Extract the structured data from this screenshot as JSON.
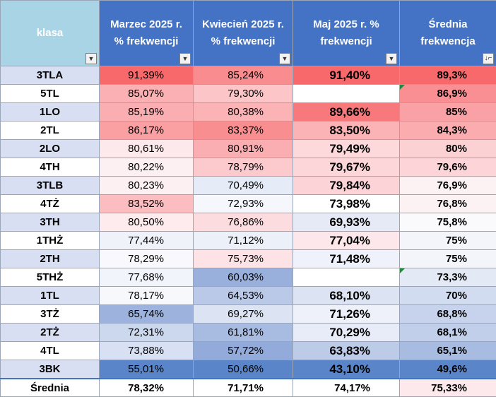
{
  "headers": {
    "klasa": "klasa",
    "marzec": [
      "Marzec 2025 r.",
      "% frekwencji"
    ],
    "kwiecien": [
      "Kwiecień 2025 r.",
      "% frekwencji"
    ],
    "maj": [
      "Maj 2025 r. %",
      "frekwencji"
    ],
    "srednia": [
      "Średnia",
      "frekwencja"
    ],
    "filter_icon": "dropdown-arrow-icon",
    "sort_icon": "sort-descending-filter-icon"
  },
  "rows": [
    {
      "klasa": "3TLA",
      "marzec": "91,39%",
      "kwiecien": "85,24%",
      "maj": "91,40%",
      "srednia": "89,3%",
      "colors": [
        "#d9dff2",
        "#f8696b",
        "#f98c8f",
        "#f8696b",
        "#f8696b"
      ]
    },
    {
      "klasa": "5TL",
      "marzec": "85,07%",
      "kwiecien": "79,30%",
      "maj": "",
      "srednia": "86,9%",
      "maj_note": true,
      "colors": [
        "#ffffff",
        "#fbb0b3",
        "#fcc6c9",
        "#ffffff",
        "#f98f92"
      ]
    },
    {
      "klasa": "1LO",
      "marzec": "85,19%",
      "kwiecien": "80,38%",
      "maj": "89,66%",
      "srednia": "85%",
      "colors": [
        "#d9dff2",
        "#fbaeb1",
        "#fbb3b6",
        "#f8797c",
        "#f9a1a4"
      ]
    },
    {
      "klasa": "2TL",
      "marzec": "86,17%",
      "kwiecien": "83,37%",
      "maj": "83,50%",
      "srednia": "84,3%",
      "colors": [
        "#ffffff",
        "#fa9fa2",
        "#f98e91",
        "#fbb3b6",
        "#fbacaf"
      ]
    },
    {
      "klasa": "2LO",
      "marzec": "80,61%",
      "kwiecien": "80,91%",
      "maj": "79,49%",
      "srednia": "80%",
      "colors": [
        "#d9dff2",
        "#fde9ec",
        "#fbaeb1",
        "#fdd9dc",
        "#fcd1d4"
      ]
    },
    {
      "klasa": "4TH",
      "marzec": "80,22%",
      "kwiecien": "78,79%",
      "maj": "79,67%",
      "srednia": "79,6%",
      "colors": [
        "#ffffff",
        "#fdf0f2",
        "#fccacd",
        "#fcd6d9",
        "#fdd5d8"
      ]
    },
    {
      "klasa": "3TLB",
      "marzec": "80,23%",
      "kwiecien": "70,49%",
      "maj": "79,84%",
      "srednia": "76,9%",
      "colors": [
        "#d9dff2",
        "#fdf0f2",
        "#e6ecf7",
        "#fcd3d6",
        "#fcf2f4"
      ]
    },
    {
      "klasa": "4TŻ",
      "marzec": "83,52%",
      "kwiecien": "72,93%",
      "maj": "73,98%",
      "srednia": "76,8%",
      "colors": [
        "#ffffff",
        "#fbbdc0",
        "#f6f7fc",
        "#ffffff",
        "#fcf2f4"
      ]
    },
    {
      "klasa": "3TH",
      "marzec": "80,50%",
      "kwiecien": "76,86%",
      "maj": "69,93%",
      "srednia": "75,8%",
      "colors": [
        "#d9dff2",
        "#fdebee",
        "#fcdcdf",
        "#e6eaf6",
        "#fafafd"
      ]
    },
    {
      "klasa": "1THŻ",
      "marzec": "77,44%",
      "kwiecien": "71,12%",
      "maj": "77,04%",
      "srednia": "75%",
      "colors": [
        "#ffffff",
        "#f0f2fa",
        "#ecf0f9",
        "#fde7ea",
        "#f4f5fb"
      ]
    },
    {
      "klasa": "2TH",
      "marzec": "78,29%",
      "kwiecien": "75,73%",
      "maj": "71,48%",
      "srednia": "75%",
      "colors": [
        "#d9dff2",
        "#f9f9fd",
        "#fde3e6",
        "#eff2fa",
        "#f4f5fb"
      ]
    },
    {
      "klasa": "5THŻ",
      "marzec": "77,68%",
      "kwiecien": "60,03%",
      "maj": "",
      "srednia": "73,3%",
      "maj_note": true,
      "colors": [
        "#ffffff",
        "#f2f4fb",
        "#9ab0dc",
        "#ffffff",
        "#e4e9f6"
      ]
    },
    {
      "klasa": "1TL",
      "marzec": "78,17%",
      "kwiecien": "64,53%",
      "maj": "68,10%",
      "srednia": "70%",
      "colors": [
        "#d9dff2",
        "#f7f8fc",
        "#bac9e8",
        "#dce3f3",
        "#d2dcf0"
      ]
    },
    {
      "klasa": "3TŻ",
      "marzec": "65,74%",
      "kwiecien": "69,27%",
      "maj": "71,26%",
      "srednia": "68,8%",
      "colors": [
        "#ffffff",
        "#9db3dd",
        "#dce3f3",
        "#eef1fa",
        "#c7d3ec"
      ]
    },
    {
      "klasa": "2TŻ",
      "marzec": "72,31%",
      "kwiecien": "61,81%",
      "maj": "70,29%",
      "srednia": "68,1%",
      "colors": [
        "#d9dff2",
        "#ccd8ee",
        "#a8bce1",
        "#e8ecf8",
        "#c2cfea"
      ]
    },
    {
      "klasa": "4TL",
      "marzec": "73,88%",
      "kwiecien": "57,72%",
      "maj": "63,83%",
      "srednia": "65,1%",
      "colors": [
        "#ffffff",
        "#d8e0f3",
        "#93abda",
        "#bccbe8",
        "#a8bce1"
      ]
    },
    {
      "klasa": "3BK",
      "marzec": "55,01%",
      "kwiecien": "50,66%",
      "maj": "43,10%",
      "srednia": "49,6%",
      "colors": [
        "#d9dff2",
        "#5a86c9",
        "#5a86c9",
        "#5a86c9",
        "#5a86c9"
      ]
    }
  ],
  "footer": {
    "label": "Średnia",
    "marzec": "78,32%",
    "kwiecien": "71,71%",
    "maj": "74,17%",
    "srednia": "75,33%",
    "srednia_color": "#fde9ec"
  }
}
